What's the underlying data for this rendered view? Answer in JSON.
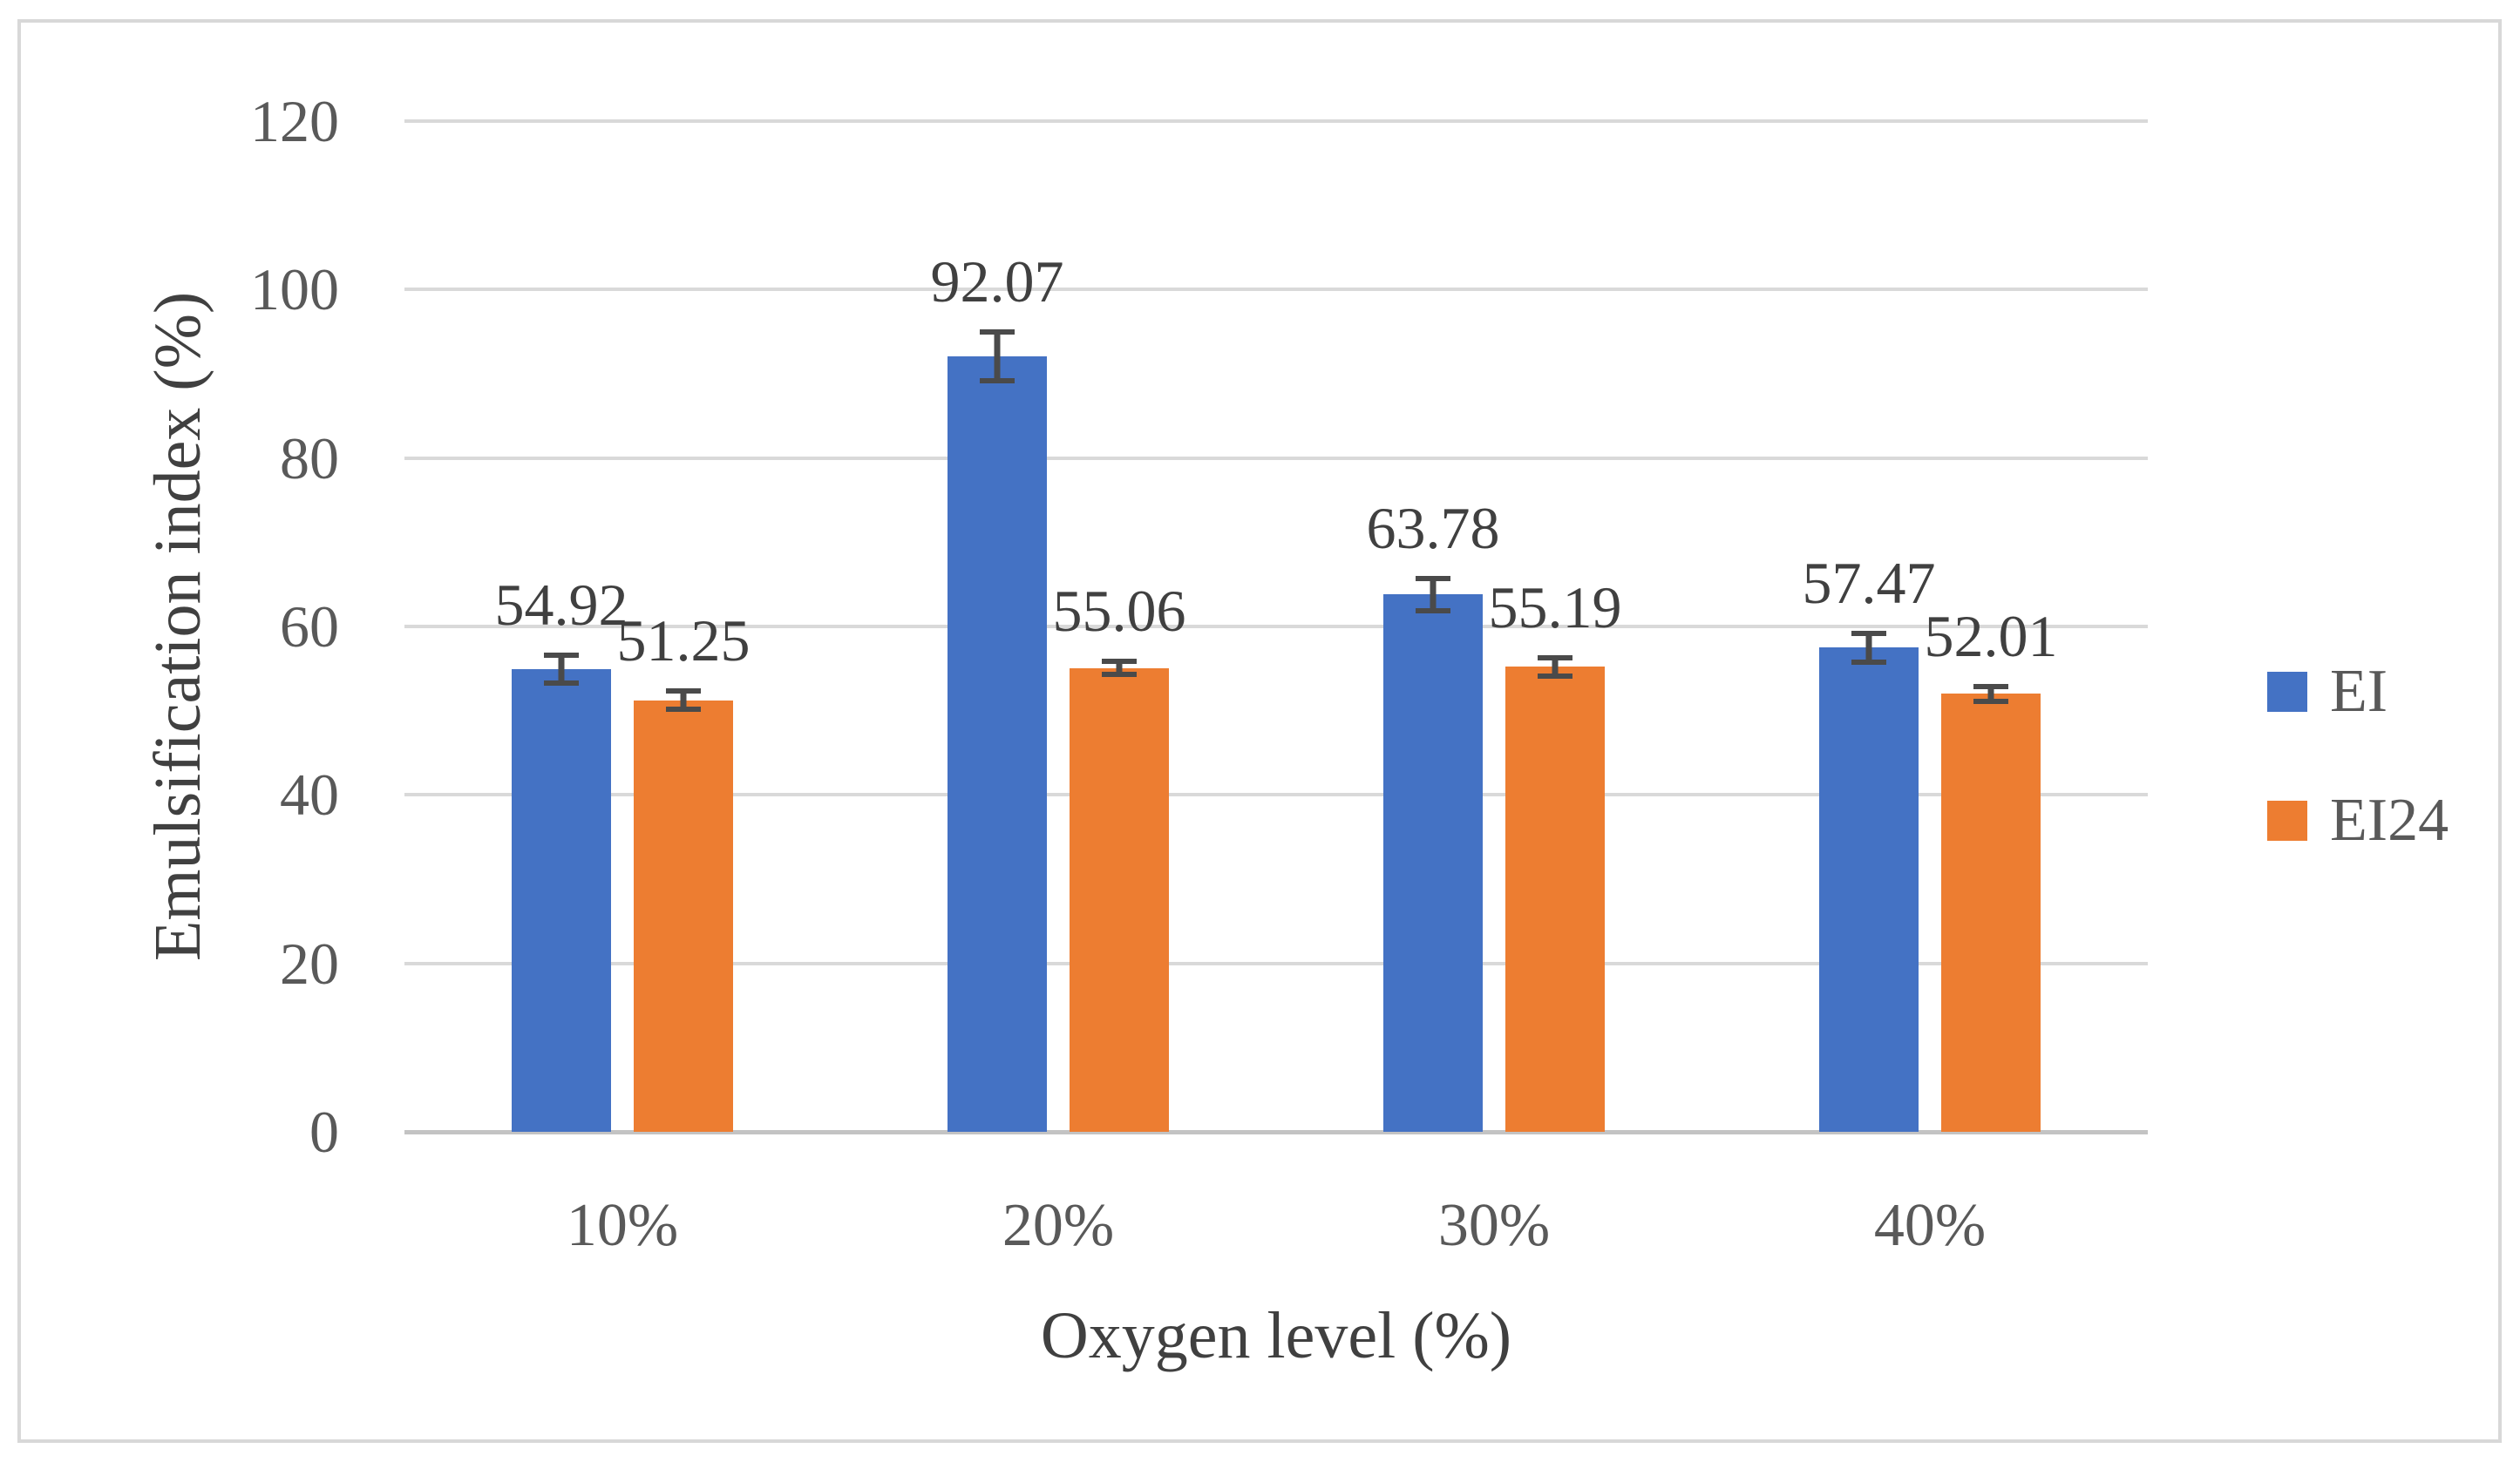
{
  "figure": {
    "background": "#ffffff",
    "border_color": "#d8d8d8"
  },
  "chart_data": {
    "type": "bar",
    "title": "",
    "xlabel": "Oxygen level (%)",
    "ylabel": "Emulsification index (%)",
    "categories": [
      "10%",
      "20%",
      "30%",
      "40%"
    ],
    "series": [
      {
        "name": "EI",
        "color": "#4472C4",
        "values": [
          54.92,
          92.07,
          63.78,
          57.47
        ],
        "labels": [
          "54.92",
          "92.07",
          "63.78",
          "57.47"
        ],
        "errors_est": [
          2.0,
          3.2,
          2.2,
          2.0
        ]
      },
      {
        "name": "EI24",
        "color": "#ED7D31",
        "values": [
          51.25,
          55.06,
          55.19,
          52.01
        ],
        "labels": [
          "51.25",
          "55.06",
          "55.19",
          "52.01"
        ],
        "errors_est": [
          1.4,
          1.1,
          1.4,
          1.2
        ]
      }
    ],
    "y_axis": {
      "min": 0,
      "max": 120,
      "tick_step": 20,
      "tick_labels": [
        "0",
        "20",
        "40",
        "60",
        "80",
        "100",
        "120"
      ]
    },
    "grid": "horizontal",
    "error_bars": true,
    "legend_position": "right",
    "gridline_color": "#d9d9d9",
    "axis_line_color": "#c3c3c3",
    "error_bar_color": "#4a4a4a",
    "tick_text_color": "#595959",
    "label_text_color": "#404040"
  }
}
